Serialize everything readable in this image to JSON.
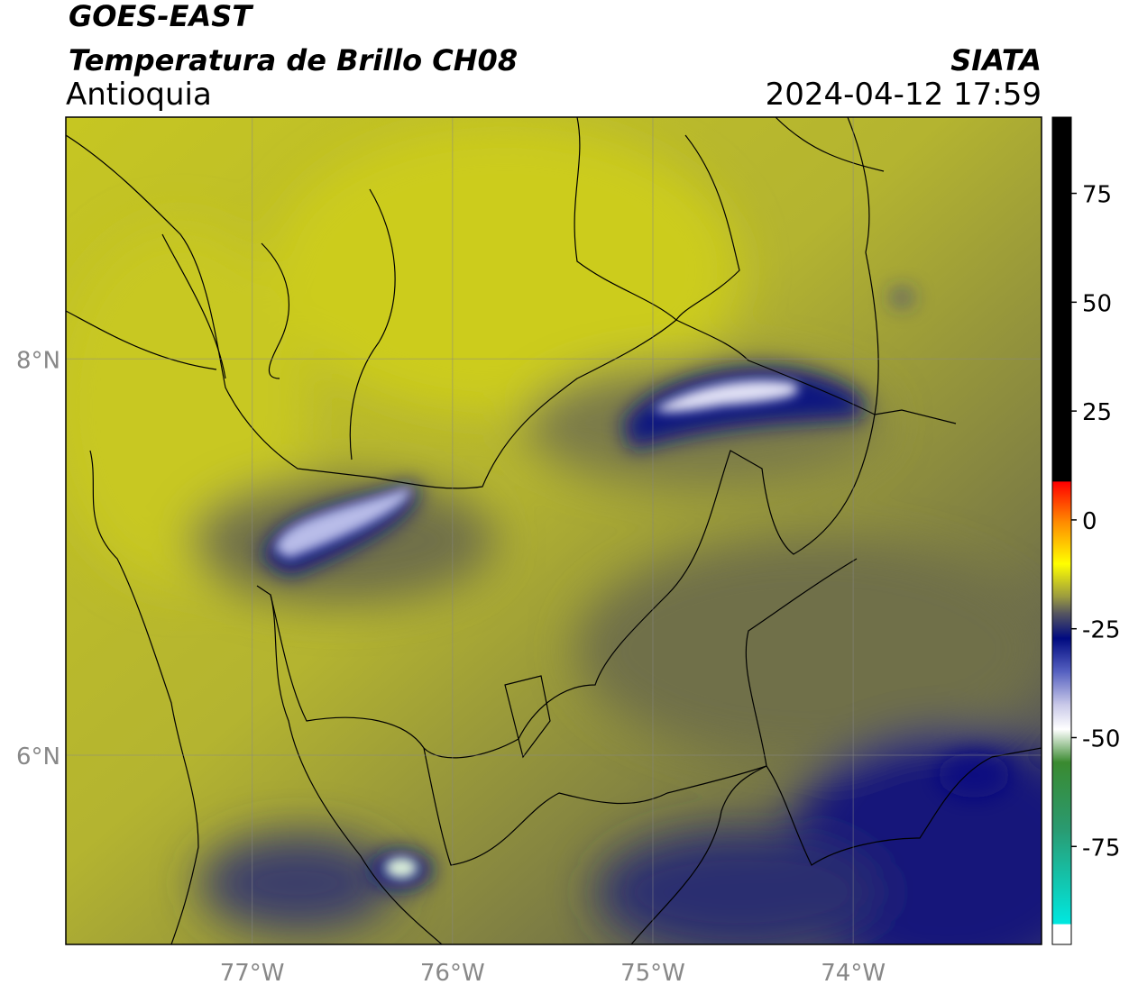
{
  "header": {
    "satellite": "GOES-EAST",
    "product": "Temperatura de Brillo CH08",
    "region": "Antioquia",
    "agency": "SIATA",
    "datetime": "2024-04-12 17:59"
  },
  "map": {
    "xlim": [
      -77.93,
      -73.06
    ],
    "ylim": [
      5.045,
      9.22
    ],
    "xticks": [
      {
        "value": -77,
        "label": "77°W"
      },
      {
        "value": -76,
        "label": "76°W"
      },
      {
        "value": -75,
        "label": "75°W"
      },
      {
        "value": -74,
        "label": "74°W"
      }
    ],
    "yticks": [
      {
        "value": 8,
        "label": "8°N"
      },
      {
        "value": 6,
        "label": "6°N"
      }
    ]
  },
  "colorbar": {
    "lim": [
      -97.5,
      92.5
    ],
    "ticks": [
      75,
      50,
      25,
      0,
      -25,
      -50,
      -75
    ]
  }
}
